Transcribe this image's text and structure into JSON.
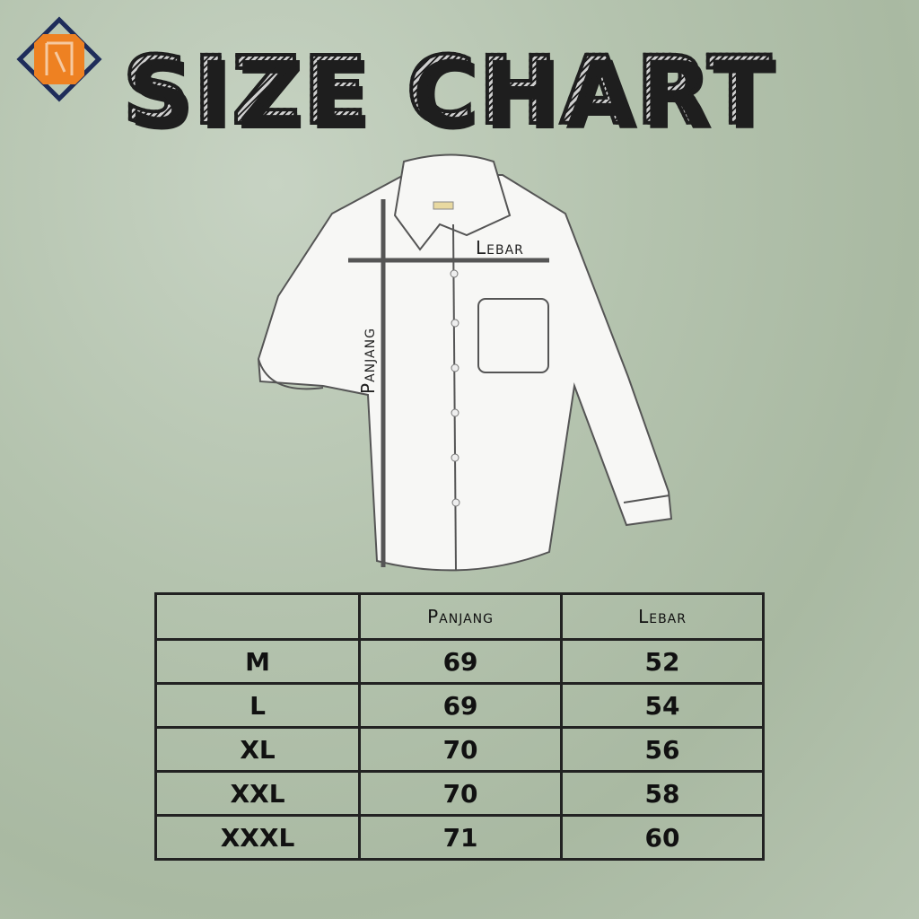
{
  "logo": {
    "letter": "N",
    "colors": {
      "primary": "#ee8122",
      "secondary": "#1f2d5a"
    }
  },
  "title": "SIZE CHART",
  "diagram": {
    "width_label": "Lebar",
    "length_label": "Panjang"
  },
  "table": {
    "headers": [
      "",
      "Panjang",
      "Lebar"
    ],
    "rows": [
      {
        "size": "M",
        "panjang": "69",
        "lebar": "52"
      },
      {
        "size": "L",
        "panjang": "69",
        "lebar": "54"
      },
      {
        "size": "XL",
        "panjang": "70",
        "lebar": "56"
      },
      {
        "size": "XXL",
        "panjang": "70",
        "lebar": "58"
      },
      {
        "size": "XXXL",
        "panjang": "71",
        "lebar": "60"
      }
    ]
  }
}
